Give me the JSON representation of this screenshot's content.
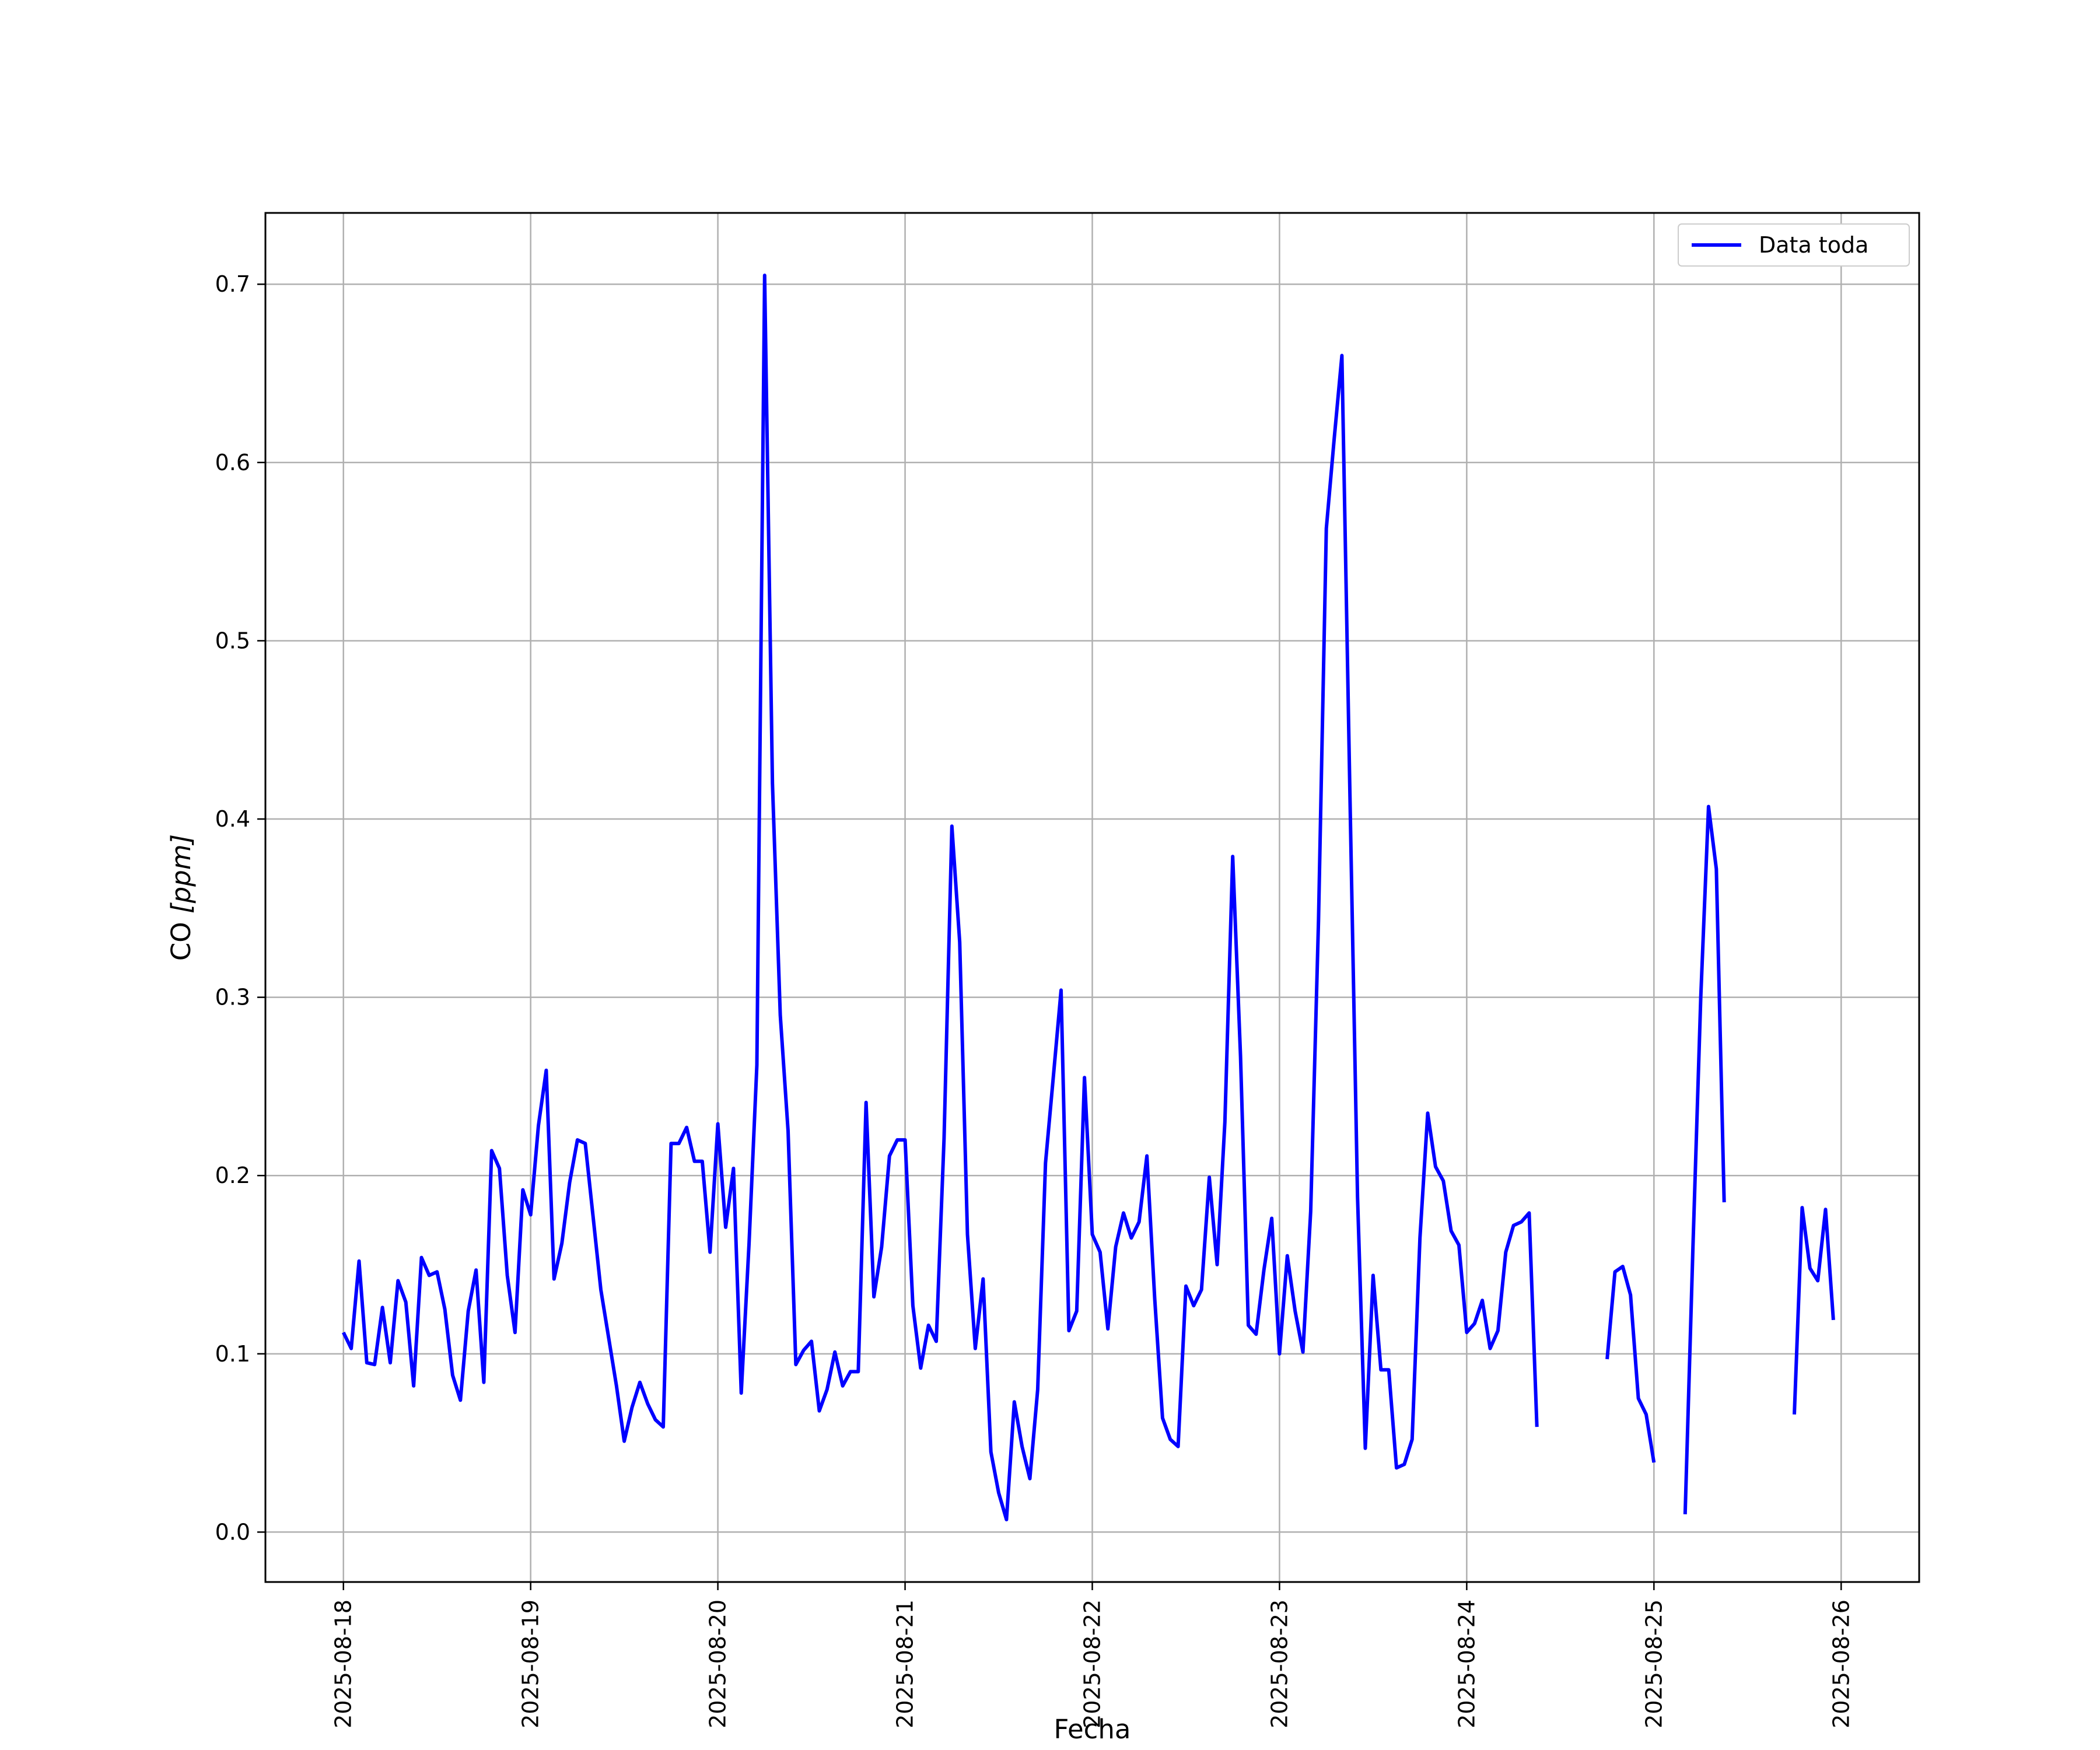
{
  "chart_data": {
    "type": "line",
    "xlabel": "Fecha",
    "ylabel_main": "CO ",
    "ylabel_unit": "[ppm]",
    "x_ticks": [
      "2025-08-18",
      "2025-08-19",
      "2025-08-20",
      "2025-08-21",
      "2025-08-22",
      "2025-08-23",
      "2025-08-24",
      "2025-08-25",
      "2025-08-26"
    ],
    "y_ticks": [
      "0.0",
      "0.1",
      "0.2",
      "0.3",
      "0.4",
      "0.5",
      "0.6",
      "0.7"
    ],
    "xlim": [
      "2025-08-17T14:00",
      "2025-08-26T10:00"
    ],
    "ylim": [
      -0.028,
      0.74
    ],
    "grid": true,
    "legend": {
      "position": "top-right",
      "label": "Data toda"
    },
    "colors": {
      "series": "#0000ff",
      "grid": "#b0b0b0"
    },
    "series": [
      {
        "name": "Data toda",
        "points": [
          [
            "2025-08-18T00:00",
            0.112
          ],
          [
            "2025-08-18T01:00",
            0.103
          ],
          [
            "2025-08-18T02:00",
            0.152
          ],
          [
            "2025-08-18T03:00",
            0.095
          ],
          [
            "2025-08-18T04:00",
            0.094
          ],
          [
            "2025-08-18T05:00",
            0.126
          ],
          [
            "2025-08-18T06:00",
            0.095
          ],
          [
            "2025-08-18T07:00",
            0.141
          ],
          [
            "2025-08-18T08:00",
            0.129
          ],
          [
            "2025-08-18T09:00",
            0.082
          ],
          [
            "2025-08-18T10:00",
            0.154
          ],
          [
            "2025-08-18T11:00",
            0.144
          ],
          [
            "2025-08-18T12:00",
            0.146
          ],
          [
            "2025-08-18T13:00",
            0.125
          ],
          [
            "2025-08-18T14:00",
            0.088
          ],
          [
            "2025-08-18T15:00",
            0.074
          ],
          [
            "2025-08-18T16:00",
            0.124
          ],
          [
            "2025-08-18T17:00",
            0.147
          ],
          [
            "2025-08-18T18:00",
            0.084
          ],
          [
            "2025-08-18T19:00",
            0.214
          ],
          [
            "2025-08-18T20:00",
            0.204
          ],
          [
            "2025-08-18T21:00",
            0.144
          ],
          [
            "2025-08-18T22:00",
            0.112
          ],
          [
            "2025-08-18T23:00",
            0.192
          ],
          [
            "2025-08-19T00:00",
            0.178
          ],
          [
            "2025-08-19T01:00",
            0.228
          ],
          [
            "2025-08-19T02:00",
            0.259
          ],
          [
            "2025-08-19T03:00",
            0.142
          ],
          [
            "2025-08-19T04:00",
            0.162
          ],
          [
            "2025-08-19T05:00",
            0.196
          ],
          [
            "2025-08-19T06:00",
            0.22
          ],
          [
            "2025-08-19T07:00",
            0.218
          ],
          [
            "2025-08-19T08:00",
            0.177
          ],
          [
            "2025-08-19T09:00",
            0.136
          ],
          [
            "2025-08-19T10:00",
            0.109
          ],
          [
            "2025-08-19T11:00",
            0.082
          ],
          [
            "2025-08-19T12:00",
            0.051
          ],
          [
            "2025-08-19T13:00",
            0.07
          ],
          [
            "2025-08-19T14:00",
            0.084
          ],
          [
            "2025-08-19T15:00",
            0.072
          ],
          [
            "2025-08-19T16:00",
            0.063
          ],
          [
            "2025-08-19T17:00",
            0.059
          ],
          [
            "2025-08-19T18:00",
            0.218
          ],
          [
            "2025-08-19T19:00",
            0.218
          ],
          [
            "2025-08-19T20:00",
            0.227
          ],
          [
            "2025-08-19T21:00",
            0.208
          ],
          [
            "2025-08-19T22:00",
            0.208
          ],
          [
            "2025-08-19T23:00",
            0.157
          ],
          [
            "2025-08-20T00:00",
            0.229
          ],
          [
            "2025-08-20T01:00",
            0.171
          ],
          [
            "2025-08-20T02:00",
            0.204
          ],
          [
            "2025-08-20T03:00",
            0.078
          ],
          [
            "2025-08-20T04:00",
            0.162
          ],
          [
            "2025-08-20T05:00",
            0.262
          ],
          [
            "2025-08-20T06:00",
            0.705
          ],
          [
            "2025-08-20T07:00",
            0.42
          ],
          [
            "2025-08-20T08:00",
            0.29
          ],
          [
            "2025-08-20T09:00",
            0.225
          ],
          [
            "2025-08-20T10:00",
            0.094
          ],
          [
            "2025-08-20T11:00",
            0.102
          ],
          [
            "2025-08-20T12:00",
            0.107
          ],
          [
            "2025-08-20T13:00",
            0.068
          ],
          [
            "2025-08-20T14:00",
            0.08
          ],
          [
            "2025-08-20T15:00",
            0.101
          ],
          [
            "2025-08-20T16:00",
            0.082
          ],
          [
            "2025-08-20T17:00",
            0.09
          ],
          [
            "2025-08-20T18:00",
            0.09
          ],
          [
            "2025-08-20T19:00",
            0.241
          ],
          [
            "2025-08-20T20:00",
            0.132
          ],
          [
            "2025-08-20T21:00",
            0.16
          ],
          [
            "2025-08-20T22:00",
            0.211
          ],
          [
            "2025-08-20T23:00",
            0.22
          ],
          [
            "2025-08-21T00:00",
            0.22
          ],
          [
            "2025-08-21T01:00",
            0.127
          ],
          [
            "2025-08-21T02:00",
            0.092
          ],
          [
            "2025-08-21T03:00",
            0.116
          ],
          [
            "2025-08-21T04:00",
            0.107
          ],
          [
            "2025-08-21T05:00",
            0.221
          ],
          [
            "2025-08-21T06:00",
            0.396
          ],
          [
            "2025-08-21T07:00",
            0.331
          ],
          [
            "2025-08-21T08:00",
            0.167
          ],
          [
            "2025-08-21T09:00",
            0.103
          ],
          [
            "2025-08-21T10:00",
            0.142
          ],
          [
            "2025-08-21T11:00",
            0.045
          ],
          [
            "2025-08-21T12:00",
            0.022
          ],
          [
            "2025-08-21T13:00",
            0.007
          ],
          [
            "2025-08-21T14:00",
            0.073
          ],
          [
            "2025-08-21T15:00",
            0.048
          ],
          [
            "2025-08-21T16:00",
            0.03
          ],
          [
            "2025-08-21T17:00",
            0.08
          ],
          [
            "2025-08-21T18:00",
            0.207
          ],
          [
            "2025-08-21T19:00",
            0.255
          ],
          [
            "2025-08-21T20:00",
            0.304
          ],
          [
            "2025-08-21T21:00",
            0.113
          ],
          [
            "2025-08-21T22:00",
            0.124
          ],
          [
            "2025-08-21T23:00",
            0.255
          ],
          [
            "2025-08-22T00:00",
            0.167
          ],
          [
            "2025-08-22T01:00",
            0.157
          ],
          [
            "2025-08-22T02:00",
            0.114
          ],
          [
            "2025-08-22T03:00",
            0.16
          ],
          [
            "2025-08-22T04:00",
            0.179
          ],
          [
            "2025-08-22T05:00",
            0.165
          ],
          [
            "2025-08-22T06:00",
            0.174
          ],
          [
            "2025-08-22T07:00",
            0.211
          ],
          [
            "2025-08-22T08:00",
            0.131
          ],
          [
            "2025-08-22T09:00",
            0.064
          ],
          [
            "2025-08-22T10:00",
            0.052
          ],
          [
            "2025-08-22T11:00",
            0.048
          ],
          [
            "2025-08-22T12:00",
            0.138
          ],
          [
            "2025-08-22T13:00",
            0.127
          ],
          [
            "2025-08-22T14:00",
            0.136
          ],
          [
            "2025-08-22T15:00",
            0.199
          ],
          [
            "2025-08-22T16:00",
            0.15
          ],
          [
            "2025-08-22T17:00",
            0.23
          ],
          [
            "2025-08-22T18:00",
            0.379
          ],
          [
            "2025-08-22T19:00",
            0.267
          ],
          [
            "2025-08-22T20:00",
            0.116
          ],
          [
            "2025-08-22T21:00",
            0.111
          ],
          [
            "2025-08-22T22:00",
            0.147
          ],
          [
            "2025-08-22T23:00",
            0.176
          ],
          [
            "2025-08-23T00:00",
            0.1
          ],
          [
            "2025-08-23T01:00",
            0.155
          ],
          [
            "2025-08-23T02:00",
            0.124
          ],
          [
            "2025-08-23T03:00",
            0.101
          ],
          [
            "2025-08-23T04:00",
            0.18
          ],
          [
            "2025-08-23T05:00",
            0.343
          ],
          [
            "2025-08-23T06:00",
            0.563
          ],
          [
            "2025-08-23T07:00",
            0.613
          ],
          [
            "2025-08-23T08:00",
            0.66
          ],
          [
            "2025-08-23T09:00",
            0.42
          ],
          [
            "2025-08-23T10:00",
            0.188
          ],
          [
            "2025-08-23T11:00",
            0.047
          ],
          [
            "2025-08-23T12:00",
            0.144
          ],
          [
            "2025-08-23T13:00",
            0.091
          ],
          [
            "2025-08-23T14:00",
            0.091
          ],
          [
            "2025-08-23T15:00",
            0.036
          ],
          [
            "2025-08-23T16:00",
            0.038
          ],
          [
            "2025-08-23T17:00",
            0.052
          ],
          [
            "2025-08-23T18:00",
            0.165
          ],
          [
            "2025-08-23T19:00",
            0.235
          ],
          [
            "2025-08-23T20:00",
            0.205
          ],
          [
            "2025-08-23T21:00",
            0.197
          ],
          [
            "2025-08-23T22:00",
            0.169
          ],
          [
            "2025-08-23T23:00",
            0.161
          ],
          [
            "2025-08-24T00:00",
            0.112
          ],
          [
            "2025-08-24T01:00",
            0.117
          ],
          [
            "2025-08-24T02:00",
            0.13
          ],
          [
            "2025-08-24T03:00",
            0.103
          ],
          [
            "2025-08-24T04:00",
            0.113
          ],
          [
            "2025-08-24T05:00",
            0.157
          ],
          [
            "2025-08-24T06:00",
            0.172
          ],
          [
            "2025-08-24T07:00",
            0.174
          ],
          [
            "2025-08-24T08:00",
            0.179
          ],
          [
            "2025-08-24T09:00",
            0.059
          ],
          null,
          [
            "2025-08-24T18:00",
            0.097
          ],
          [
            "2025-08-24T19:00",
            0.146
          ],
          [
            "2025-08-24T20:00",
            0.149
          ],
          [
            "2025-08-24T21:00",
            0.133
          ],
          [
            "2025-08-24T22:00",
            0.075
          ],
          [
            "2025-08-24T23:00",
            0.066
          ],
          [
            "2025-08-25T00:00",
            0.039
          ],
          null,
          [
            "2025-08-25T04:00",
            0.01
          ],
          [
            "2025-08-25T05:00",
            0.16
          ],
          [
            "2025-08-25T06:00",
            0.3
          ],
          [
            "2025-08-25T07:00",
            0.407
          ],
          [
            "2025-08-25T08:00",
            0.372
          ],
          [
            "2025-08-25T09:00",
            0.185
          ],
          null,
          [
            "2025-08-25T18:00",
            0.066
          ],
          [
            "2025-08-25T19:00",
            0.182
          ],
          [
            "2025-08-25T20:00",
            0.148
          ],
          [
            "2025-08-25T21:00",
            0.141
          ],
          [
            "2025-08-25T22:00",
            0.181
          ],
          [
            "2025-08-25T23:00",
            0.119
          ]
        ]
      }
    ]
  }
}
